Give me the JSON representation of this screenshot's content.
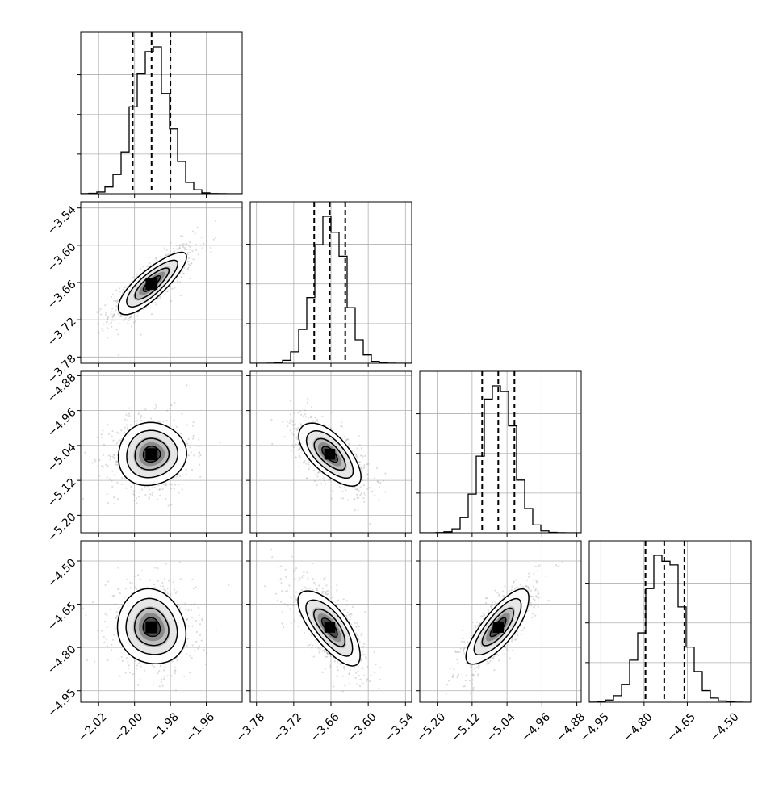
{
  "chart_data": {
    "type": "corner",
    "parameters": [
      {
        "range": [
          -2.03,
          -1.94
        ],
        "ticks": [
          -2.02,
          -2.0,
          -1.98,
          -1.96
        ],
        "quantiles": [
          -2.001,
          -1.9905,
          -1.98
        ],
        "peak": -1.9905,
        "sigma": 0.0095
      },
      {
        "range": [
          -3.79,
          -3.53
        ],
        "ticks": [
          -3.78,
          -3.72,
          -3.66,
          -3.6,
          -3.54
        ],
        "quantiles": [
          -3.687,
          -3.662,
          -3.637
        ],
        "peak": -3.662,
        "sigma": 0.025
      },
      {
        "range": [
          -5.24,
          -4.87
        ],
        "ticks": [
          -5.2,
          -5.12,
          -5.04,
          -4.96,
          -4.88
        ],
        "quantiles": [
          -5.097,
          -5.06,
          -5.023
        ],
        "peak": -5.06,
        "sigma": 0.036
      },
      {
        "range": [
          -4.99,
          -4.43
        ],
        "ticks": [
          -4.95,
          -4.8,
          -4.65,
          -4.5
        ],
        "quantiles": [
          -4.795,
          -4.73,
          -4.66
        ],
        "peak": -4.73,
        "sigma": 0.065
      }
    ],
    "correlations": [
      {
        "pair": [
          0,
          1
        ],
        "rho": 0.82
      },
      {
        "pair": [
          0,
          2
        ],
        "rho": 0.05
      },
      {
        "pair": [
          1,
          2
        ],
        "rho": -0.65
      },
      {
        "pair": [
          0,
          3
        ],
        "rho": -0.1
      },
      {
        "pair": [
          1,
          3
        ],
        "rho": -0.72
      },
      {
        "pair": [
          2,
          3
        ],
        "rho": 0.78
      }
    ],
    "tick_labels": {
      "x0": [
        "−2.02",
        "−2.00",
        "−1.98",
        "−1.96"
      ],
      "x1": [
        "−3.78",
        "−3.72",
        "−3.66",
        "−3.60",
        "−3.54"
      ],
      "x2": [
        "−5.20",
        "−5.12",
        "−5.04",
        "−4.96",
        "−4.88"
      ],
      "x3": [
        "−4.95",
        "−4.80",
        "−4.65",
        "−4.50"
      ],
      "y1": [
        "−3.54",
        "−3.60",
        "−3.66",
        "−3.72",
        "−3.78"
      ],
      "y2": [
        "−4.88",
        "−4.96",
        "−5.04",
        "−5.12",
        "−5.20"
      ],
      "y3": [
        "−4.50",
        "−4.65",
        "−4.80",
        "−4.95"
      ]
    },
    "grid": true,
    "colors": {
      "axes": "#000000",
      "grid": "#b0b0b0",
      "scatter": "#9a9a9a"
    }
  }
}
